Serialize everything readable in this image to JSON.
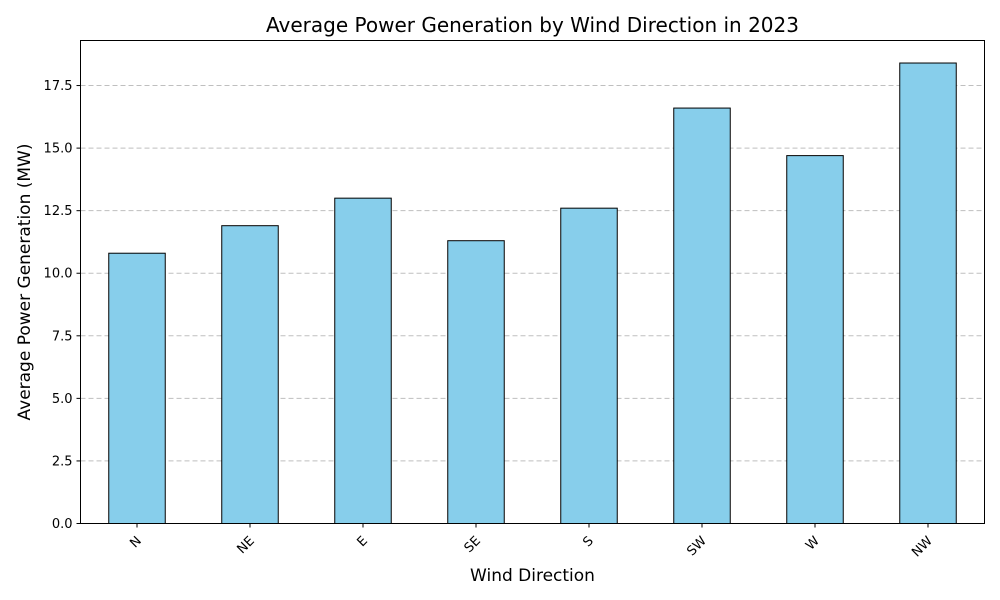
{
  "chart_data": {
    "type": "bar",
    "title": "Average Power Generation by Wind Direction in 2023",
    "xlabel": "Wind Direction",
    "ylabel": "Average Power Generation (MW)",
    "categories": [
      "N",
      "NE",
      "E",
      "SE",
      "S",
      "SW",
      "W",
      "NW"
    ],
    "values": [
      10.8,
      11.9,
      13.0,
      11.3,
      12.6,
      16.6,
      14.7,
      18.4
    ],
    "ylim": [
      0,
      19.3
    ],
    "yticks": [
      0.0,
      2.5,
      5.0,
      7.5,
      10.0,
      12.5,
      15.0,
      17.5
    ],
    "ytick_labels": [
      "0.0",
      "2.5",
      "5.0",
      "7.5",
      "10.0",
      "12.5",
      "15.0",
      "17.5"
    ],
    "grid": "y-dashed",
    "legend": "none",
    "x_tick_rotation": 45,
    "bar_color": "#87ceeb",
    "edge_color": "#000000"
  }
}
